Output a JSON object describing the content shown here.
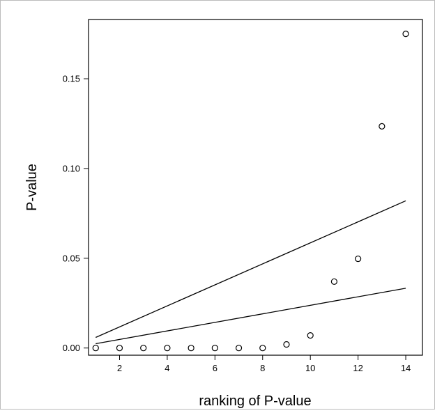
{
  "chart_data": {
    "type": "scatter",
    "title": "",
    "xlabel": "ranking of P-value",
    "ylabel": "P-value",
    "xlim": [
      0.7,
      14.7
    ],
    "ylim": [
      -0.004,
      0.183
    ],
    "x_ticks": [
      2,
      4,
      6,
      8,
      10,
      12,
      14
    ],
    "x_tick_labels": [
      "2",
      "4",
      "6",
      "8",
      "10",
      "12",
      "14"
    ],
    "y_ticks": [
      0.0,
      0.05,
      0.1,
      0.15
    ],
    "y_tick_labels": [
      "0.00",
      "0.05",
      "0.10",
      "0.15"
    ],
    "grid": false,
    "points": {
      "x": [
        1,
        2,
        3,
        4,
        5,
        6,
        7,
        8,
        9,
        10,
        11,
        12,
        13,
        14
      ],
      "y": [
        0.0,
        0.0,
        0.0,
        0.0,
        0.0,
        0.0,
        0.0,
        0.0,
        0.002,
        0.007,
        0.037,
        0.0497,
        0.1235,
        0.175
      ]
    },
    "lines": [
      {
        "x": [
          1,
          14
        ],
        "y": [
          0.0059,
          0.082
        ]
      },
      {
        "x": [
          1,
          14
        ],
        "y": [
          0.0024,
          0.0333
        ]
      }
    ],
    "colors": {
      "marker": "#000000",
      "line": "#000000",
      "background": "#ffffff"
    }
  }
}
